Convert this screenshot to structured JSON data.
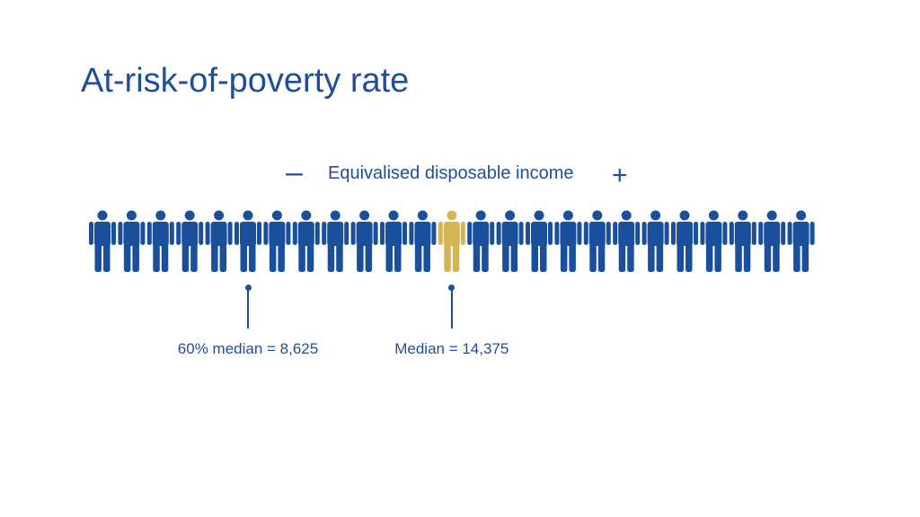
{
  "title": "At-risk-of-poverty rate",
  "scale": {
    "minus": "–",
    "label": "Equivalised disposable income",
    "plus": "+"
  },
  "people": {
    "count": 25,
    "highlight_index": 12,
    "base_color": "#1a4f9c",
    "highlight_color": "#d4b455",
    "icon": "person-icon"
  },
  "markers": [
    {
      "label": "60% median = 8,625",
      "person_index": 5
    },
    {
      "label": "Median = 14,375",
      "person_index": 12
    }
  ]
}
